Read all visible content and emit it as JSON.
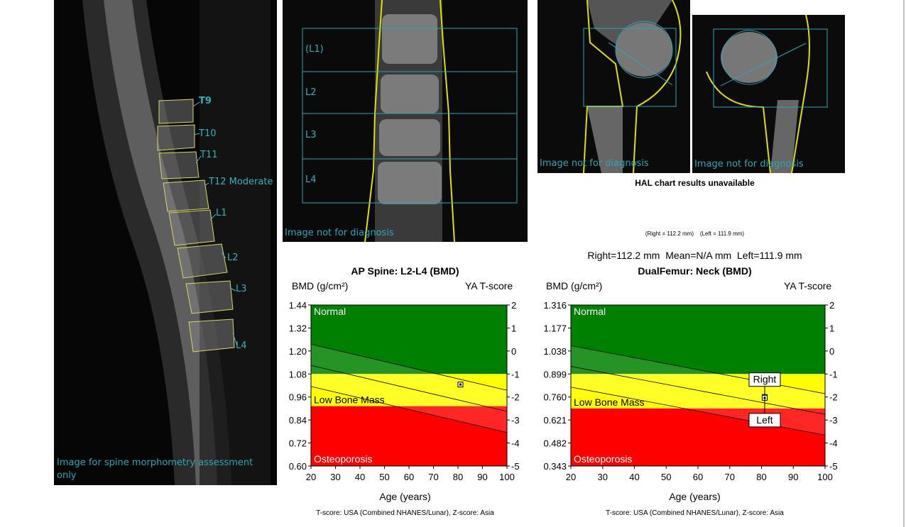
{
  "lateral_spine": {
    "vertebra_labels": [
      "T9",
      "T10",
      "T11",
      "T12 Moderate",
      "L1",
      "L2",
      "L3",
      "L4"
    ],
    "caption": "Image for spine morphometry assessment only"
  },
  "ap_spine_image": {
    "region_labels": [
      "(L1)",
      "L2",
      "L3",
      "L4"
    ],
    "caption": "Image not for diagnosis"
  },
  "femur_images": {
    "right_caption": "Image not for diagnosis",
    "left_caption": "Image not for diagnosis",
    "hal_text": "HAL chart results unavailable",
    "small_measure_text": "(Right = 112.2 mm)    (Left = 111.9 mm)",
    "measure_text": "Right=112.2 mm  Mean=N/A mm  Left=111.9 mm"
  },
  "chart_data": [
    {
      "type": "scatter",
      "title": "AP Spine: L2-L4 (BMD)",
      "ylabel": "BMD (g/cm²)",
      "y2label": "YA T-score",
      "xlabel": "Age (years)",
      "x_ticks": [
        20,
        30,
        40,
        50,
        60,
        70,
        80,
        90,
        100
      ],
      "y_ticks": [
        "1.44",
        "1.32",
        "1.20",
        "1.08",
        "0.96",
        "0.84",
        "0.72",
        "0.60"
      ],
      "y_tick_values": [
        1.44,
        1.32,
        1.2,
        1.08,
        0.96,
        0.84,
        0.72,
        0.6
      ],
      "t_ticks": [
        "2",
        "1",
        "0",
        "-1",
        "-2",
        "-3",
        "-4",
        "-5"
      ],
      "xlim": [
        20,
        100
      ],
      "ylim": [
        0.6,
        1.44
      ],
      "zones": [
        {
          "name": "Normal",
          "from": 1.08,
          "to": 1.44,
          "color": "#008000"
        },
        {
          "name": "Low Bone Mass",
          "from": 0.912,
          "to": 1.08,
          "color": "#ffff00"
        },
        {
          "name": "Osteoporosis",
          "from": 0.6,
          "to": 0.912,
          "color": "#ff0000"
        }
      ],
      "curves": [
        {
          "x": [
            20,
            100
          ],
          "y": [
            1.235,
            0.995
          ]
        },
        {
          "x": [
            20,
            100
          ],
          "y": [
            1.125,
            0.885
          ]
        },
        {
          "x": [
            20,
            100
          ],
          "y": [
            1.015,
            0.775
          ]
        }
      ],
      "points": [
        {
          "x": 81,
          "y": 1.025,
          "label": ""
        }
      ],
      "footnote": "T-score: USA (Combined NHANES/Lunar), Z-score: Asia"
    },
    {
      "type": "scatter",
      "title": "DualFemur: Neck (BMD)",
      "ylabel": "BMD (g/cm²)",
      "y2label": "YA T-score",
      "xlabel": "Age (years)",
      "x_ticks": [
        20,
        30,
        40,
        50,
        60,
        70,
        80,
        90,
        100
      ],
      "y_ticks": [
        "1.316",
        "1.177",
        "1.038",
        "0.899",
        "0.760",
        "0.621",
        "0.482",
        "0.343"
      ],
      "y_tick_values": [
        1.316,
        1.177,
        1.038,
        0.899,
        0.76,
        0.621,
        0.482,
        0.343
      ],
      "t_ticks": [
        "2",
        "1",
        "0",
        "-1",
        "-2",
        "-3",
        "-4",
        "-5"
      ],
      "xlim": [
        20,
        100
      ],
      "ylim": [
        0.343,
        1.316
      ],
      "zones": [
        {
          "name": "Normal",
          "from": 0.899,
          "to": 1.316,
          "color": "#008000"
        },
        {
          "name": "Low Bone Mass",
          "from": 0.691,
          "to": 0.899,
          "color": "#ffff00"
        },
        {
          "name": "Osteoporosis",
          "from": 0.343,
          "to": 0.691,
          "color": "#ff0000"
        }
      ],
      "curves": [
        {
          "x": [
            20,
            100
          ],
          "y": [
            1.07,
            0.78
          ]
        },
        {
          "x": [
            20,
            100
          ],
          "y": [
            0.945,
            0.655
          ]
        },
        {
          "x": [
            20,
            100
          ],
          "y": [
            0.82,
            0.53
          ]
        }
      ],
      "points": [
        {
          "x": 81,
          "y": 0.76,
          "label": "Right"
        },
        {
          "x": 81,
          "y": 0.755,
          "label": "Left"
        }
      ],
      "footnote": "T-score: USA (Combined NHANES/Lunar), Z-score: Asia"
    }
  ]
}
